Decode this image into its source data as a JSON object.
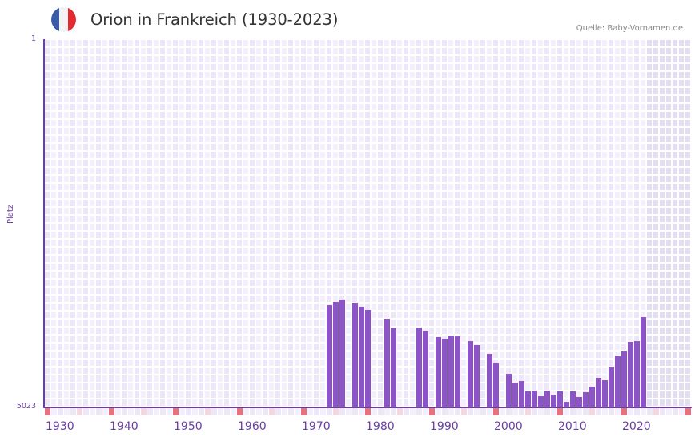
{
  "header": {
    "title": "Orion in Frankreich (1930-2023)",
    "source": "Quelle: Baby-Vornamen.de",
    "flag_icon": "france-flag-icon",
    "flag_colors": [
      "#3a5ba8",
      "#f2f2f7",
      "#e32a31"
    ]
  },
  "axes": {
    "ylabel": "Platz",
    "ytick_top": "1",
    "ytick_bottom": "5023",
    "xticks": [
      "1930",
      "1940",
      "1950",
      "1960",
      "1970",
      "1980",
      "1990",
      "2000",
      "2010",
      "2020"
    ]
  },
  "colors": {
    "bar": "#8c54c6",
    "axis": "#6a3fa0",
    "grid_light": "#f3f0fb",
    "grid_dark": "#ede8f8",
    "future_shade": "#e3dff0",
    "marker_decade": "#e6737b",
    "marker_half": "#f5d7e0"
  },
  "chart_data": {
    "type": "bar",
    "title": "Orion in Frankreich (1930-2023)",
    "xlabel": "",
    "ylabel": "Platz",
    "y_inverted": true,
    "ylim": [
      1,
      5023
    ],
    "xlim": [
      1930,
      2030
    ],
    "grid": true,
    "legend": null,
    "categories": [
      1974,
      1975,
      1976,
      1978,
      1979,
      1980,
      1983,
      1984,
      1988,
      1989,
      1991,
      1992,
      1993,
      1994,
      1996,
      1997,
      1999,
      2000,
      2002,
      2003,
      2004,
      2005,
      2006,
      2007,
      2008,
      2009,
      2010,
      2011,
      2012,
      2013,
      2014,
      2015,
      2016,
      2017,
      2018,
      2019,
      2020,
      2021,
      2022,
      2023
    ],
    "values": [
      3629,
      3585,
      3552,
      3596,
      3650,
      3694,
      3814,
      3944,
      3934,
      3977,
      4064,
      4086,
      4043,
      4054,
      4119,
      4173,
      4293,
      4413,
      4566,
      4685,
      4664,
      4805,
      4794,
      4871,
      4794,
      4849,
      4805,
      4947,
      4805,
      4881,
      4816,
      4740,
      4620,
      4653,
      4468,
      4326,
      4250,
      4130,
      4119,
      3792
    ]
  }
}
